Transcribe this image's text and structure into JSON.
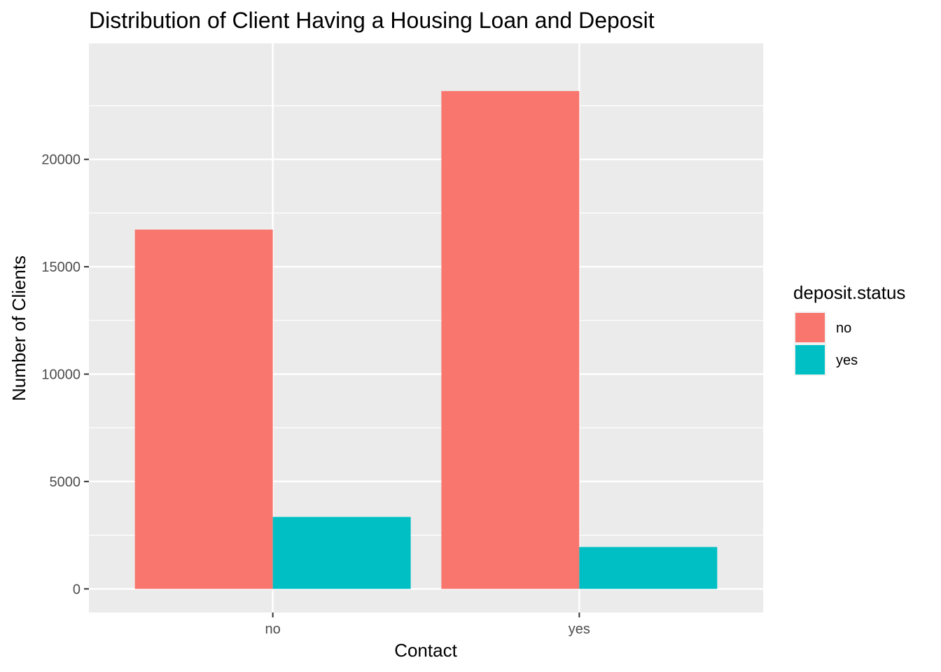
{
  "chart_data": {
    "type": "bar",
    "title": "Distribution of Client Having a Housing Loan and Deposit",
    "xlabel": "Contact",
    "ylabel": "Number of Clients",
    "categories": [
      "no",
      "yes"
    ],
    "series": [
      {
        "name": "no",
        "color": "#F8766D",
        "values": [
          16730,
          23180
        ]
      },
      {
        "name": "yes",
        "color": "#00BFC4",
        "values": [
          3350,
          1950
        ]
      }
    ],
    "ylim": [
      -1100,
      25400
    ],
    "yticks": [
      0,
      5000,
      10000,
      15000,
      20000
    ],
    "ytick_labels": [
      "0",
      "5000",
      "10000",
      "15000",
      "20000"
    ],
    "legend": {
      "title": "deposit.status",
      "position": "right"
    },
    "grid": true,
    "panel_background": "#EBEBEB"
  }
}
